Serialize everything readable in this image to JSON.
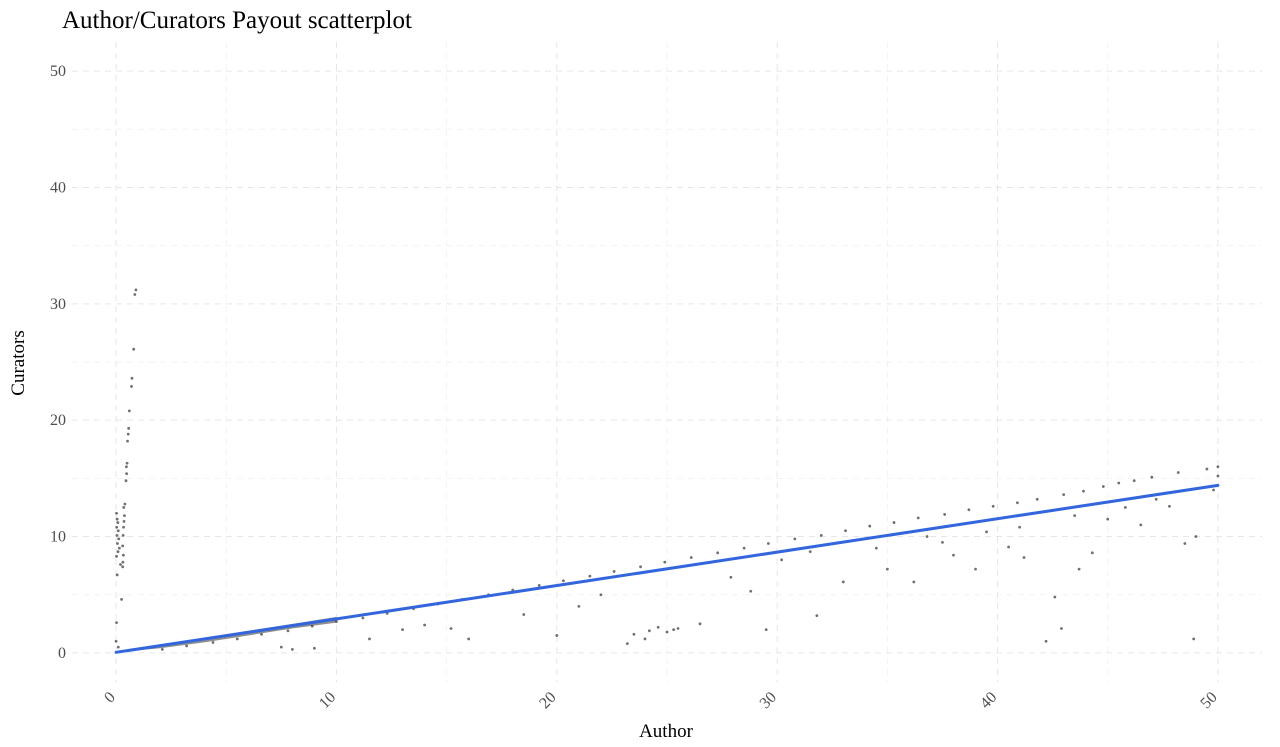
{
  "chart_data": {
    "type": "scatter",
    "title": "Author/Curators Payout scatterplot",
    "xlabel": "Author",
    "ylabel": "Curators",
    "xlim": [
      -2,
      52
    ],
    "ylim": [
      -2.5,
      52.5
    ],
    "x_ticks": [
      0,
      10,
      20,
      30,
      40,
      50
    ],
    "y_ticks": [
      0,
      10,
      20,
      30,
      40,
      50
    ],
    "x_tick_labels": [
      "0",
      "10",
      "20",
      "30",
      "40",
      "50"
    ],
    "y_tick_labels": [
      "0",
      "10",
      "20",
      "30",
      "40",
      "50"
    ],
    "grid": true,
    "legend": "none",
    "point_color": "#333333",
    "trend_line": {
      "x": [
        0,
        50
      ],
      "y": [
        0.05,
        14.4
      ],
      "color": "#3366dd"
    },
    "series": [
      {
        "points": [
          [
            0.02,
            12.0
          ],
          [
            0.05,
            11.5
          ],
          [
            0.08,
            11.2
          ],
          [
            0.03,
            10.8
          ],
          [
            0.1,
            10.5
          ],
          [
            0.04,
            10.1
          ],
          [
            0.12,
            9.8
          ],
          [
            0.06,
            9.4
          ],
          [
            0.15,
            9.0
          ],
          [
            0.09,
            8.7
          ],
          [
            0.02,
            8.3
          ],
          [
            0.2,
            7.6
          ],
          [
            0.05,
            6.7
          ],
          [
            0.3,
            9.2
          ],
          [
            0.32,
            10.1
          ],
          [
            0.34,
            10.8
          ],
          [
            0.36,
            11.3
          ],
          [
            0.38,
            11.8
          ],
          [
            0.35,
            12.5
          ],
          [
            0.33,
            8.4
          ],
          [
            0.31,
            7.8
          ],
          [
            0.3,
            7.4
          ],
          [
            0.4,
            12.8
          ],
          [
            0.45,
            14.8
          ],
          [
            0.48,
            15.4
          ],
          [
            0.47,
            16.0
          ],
          [
            0.5,
            16.3
          ],
          [
            0.52,
            18.2
          ],
          [
            0.55,
            18.8
          ],
          [
            0.57,
            19.3
          ],
          [
            0.6,
            20.8
          ],
          [
            0.7,
            22.9
          ],
          [
            0.72,
            23.6
          ],
          [
            0.8,
            26.1
          ],
          [
            0.85,
            30.8
          ],
          [
            0.9,
            31.2
          ],
          [
            0.25,
            4.6
          ],
          [
            0.02,
            2.6
          ],
          [
            0.0,
            1.0
          ],
          [
            0.1,
            0.5
          ],
          [
            24.6,
            2.2
          ],
          [
            25.0,
            1.8
          ],
          [
            25.5,
            2.1
          ],
          [
            23.2,
            0.8
          ],
          [
            24.0,
            1.2
          ],
          [
            28.8,
            5.3
          ],
          [
            29.5,
            2.0
          ],
          [
            31.8,
            3.2
          ],
          [
            33.0,
            6.1
          ],
          [
            35.0,
            7.2
          ],
          [
            36.2,
            6.1
          ],
          [
            38.0,
            8.4
          ],
          [
            39.0,
            7.2
          ],
          [
            40.5,
            9.1
          ],
          [
            41.2,
            8.2
          ],
          [
            42.2,
            1.0
          ],
          [
            42.9,
            2.1
          ],
          [
            42.6,
            4.8
          ],
          [
            43.7,
            7.2
          ],
          [
            44.3,
            8.6
          ],
          [
            45.0,
            11.5
          ],
          [
            46.5,
            11.0
          ],
          [
            47.8,
            12.6
          ],
          [
            48.5,
            9.4
          ],
          [
            48.9,
            1.2
          ],
          [
            49.0,
            10.0
          ],
          [
            49.5,
            15.8
          ],
          [
            48.2,
            15.5
          ],
          [
            47.0,
            15.1
          ],
          [
            46.2,
            14.8
          ],
          [
            45.5,
            14.6
          ],
          [
            44.8,
            14.3
          ],
          [
            43.9,
            13.9
          ],
          [
            43.0,
            13.6
          ],
          [
            41.8,
            13.2
          ],
          [
            40.9,
            12.9
          ],
          [
            39.8,
            12.6
          ],
          [
            38.7,
            12.3
          ],
          [
            37.6,
            11.9
          ],
          [
            36.4,
            11.6
          ],
          [
            35.3,
            11.2
          ],
          [
            34.2,
            10.9
          ],
          [
            33.1,
            10.5
          ],
          [
            32.0,
            10.1
          ],
          [
            30.8,
            9.8
          ],
          [
            29.6,
            9.4
          ],
          [
            28.5,
            9.0
          ],
          [
            27.3,
            8.6
          ],
          [
            26.1,
            8.2
          ],
          [
            24.9,
            7.8
          ],
          [
            23.8,
            7.4
          ],
          [
            22.6,
            7.0
          ],
          [
            21.5,
            6.6
          ],
          [
            20.3,
            6.2
          ],
          [
            19.2,
            5.8
          ],
          [
            18.0,
            5.4
          ],
          [
            16.9,
            5.0
          ],
          [
            15.7,
            4.6
          ],
          [
            14.6,
            4.2
          ],
          [
            13.5,
            3.8
          ],
          [
            12.3,
            3.4
          ],
          [
            11.2,
            3.0
          ],
          [
            10.0,
            2.7
          ],
          [
            8.9,
            2.3
          ],
          [
            7.8,
            1.9
          ],
          [
            6.6,
            1.6
          ],
          [
            5.5,
            1.2
          ],
          [
            4.4,
            0.9
          ],
          [
            3.2,
            0.6
          ],
          [
            2.1,
            0.3
          ],
          [
            20.0,
            1.5
          ],
          [
            18.5,
            3.3
          ],
          [
            16.0,
            1.2
          ],
          [
            15.2,
            2.1
          ],
          [
            13.0,
            2.0
          ],
          [
            9.0,
            0.4
          ],
          [
            8.0,
            0.3
          ],
          [
            7.5,
            0.5
          ],
          [
            11.5,
            1.2
          ],
          [
            14.0,
            2.4
          ],
          [
            21.0,
            4.0
          ],
          [
            22.0,
            5.0
          ],
          [
            26.5,
            2.5
          ],
          [
            27.9,
            6.5
          ],
          [
            30.2,
            8.0
          ],
          [
            31.5,
            8.7
          ],
          [
            34.5,
            9.0
          ],
          [
            36.8,
            10.0
          ],
          [
            37.5,
            9.5
          ],
          [
            39.5,
            10.4
          ],
          [
            41.0,
            10.8
          ],
          [
            43.5,
            11.8
          ],
          [
            45.8,
            12.5
          ],
          [
            47.2,
            13.2
          ],
          [
            49.8,
            14.0
          ],
          [
            50.0,
            16.0
          ],
          [
            50.0,
            15.2
          ],
          [
            25.3,
            2.0
          ],
          [
            24.2,
            1.9
          ],
          [
            23.5,
            1.6
          ]
        ]
      }
    ]
  }
}
